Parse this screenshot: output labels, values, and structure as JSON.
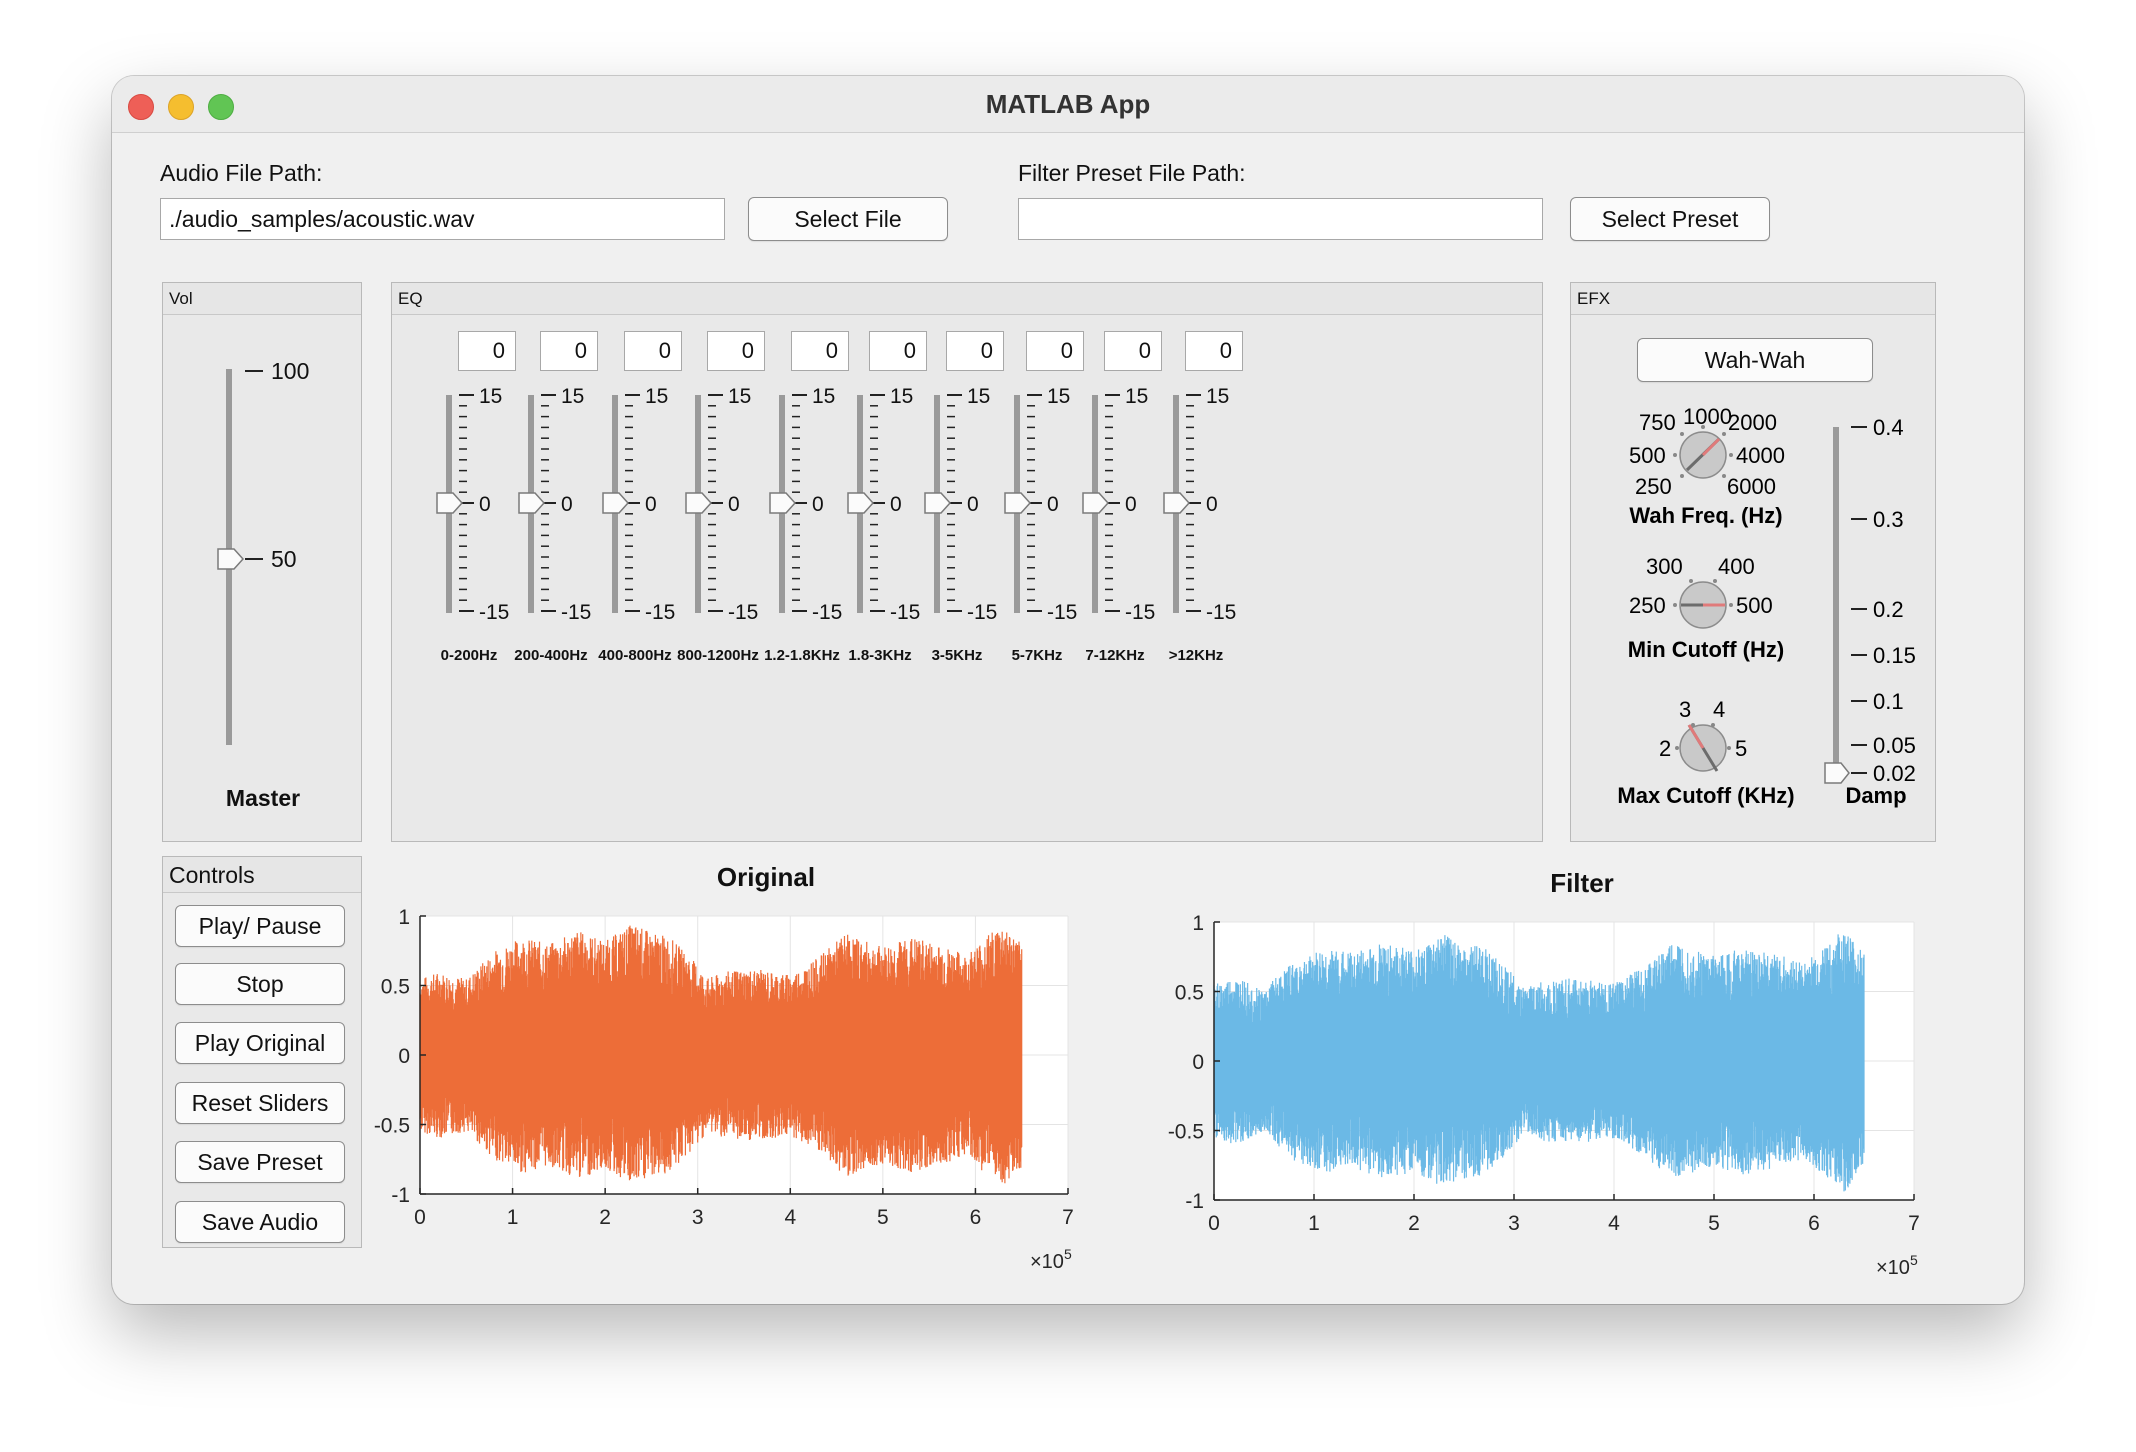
{
  "window": {
    "title": "MATLAB App"
  },
  "audio": {
    "label": "Audio File Path:",
    "value": "./audio_samples/acoustic.wav",
    "button": "Select File"
  },
  "preset": {
    "label": "Filter Preset File Path:",
    "value": "",
    "button": "Select Preset"
  },
  "vol": {
    "panel_title": "Vol",
    "caption": "Master",
    "ticks": [
      "100",
      "50"
    ],
    "value": 50,
    "min": 0,
    "max": 100
  },
  "eq": {
    "panel_title": "EQ",
    "tick_top": "15",
    "tick_mid": "0",
    "tick_bot": "-15",
    "min": -15,
    "max": 15,
    "bands": [
      {
        "label": "0-200Hz",
        "value": "0"
      },
      {
        "label": "200-400Hz",
        "value": "0"
      },
      {
        "label": "400-800Hz",
        "value": "0"
      },
      {
        "label": "800-1200Hz",
        "value": "0"
      },
      {
        "label": "1.2-1.8KHz",
        "value": "0"
      },
      {
        "label": "1.8-3KHz",
        "value": "0"
      },
      {
        "label": "3-5KHz",
        "value": "0"
      },
      {
        "label": "5-7KHz",
        "value": "0"
      },
      {
        "label": "7-12KHz",
        "value": "0"
      },
      {
        "label": ">12KHz",
        "value": "0"
      }
    ]
  },
  "efx": {
    "panel_title": "EFX",
    "button": "Wah-Wah",
    "wah": {
      "caption": "Wah Freq. (Hz)",
      "ticks": [
        "750",
        "1000",
        "2000",
        "500",
        "4000",
        "250",
        "6000"
      ]
    },
    "min_cutoff": {
      "caption": "Min Cutoff (Hz)",
      "ticks": [
        "300",
        "400",
        "250",
        "500"
      ]
    },
    "max_cutoff": {
      "caption": "Max Cutoff (KHz)",
      "ticks": [
        "3",
        "4",
        "2",
        "5"
      ]
    },
    "damp": {
      "caption": "Damp",
      "ticks": [
        "0.4",
        "0.3",
        "0.2",
        "0.15",
        "0.1",
        "0.05",
        "0.02"
      ],
      "value": 0.02
    }
  },
  "controls": {
    "panel_title": "Controls",
    "buttons": [
      "Play/ Pause",
      "Stop",
      "Play Original",
      "Reset Sliders",
      "Save Preset",
      "Save Audio"
    ]
  },
  "colors": {
    "original": "#ED6D38",
    "filter": "#6BB9E6"
  },
  "chart_data": [
    {
      "type": "area",
      "title": "Original",
      "x_range": [
        0,
        650000
      ],
      "xlim": [
        0,
        700000
      ],
      "ylim": [
        -1,
        1
      ],
      "xticks": [
        "0",
        "1",
        "2",
        "3",
        "4",
        "5",
        "6",
        "7"
      ],
      "yticks": [
        "1",
        "0.5",
        "0",
        "-0.5",
        "-1"
      ],
      "x_exponent": "×10",
      "x_exponent_power": "5",
      "envelope_x": [
        0,
        20000,
        50000,
        80000,
        110000,
        140000,
        170000,
        200000,
        230000,
        250000,
        270000,
        300000,
        310000,
        330000,
        360000,
        400000,
        430000,
        460000,
        480000,
        500000,
        530000,
        560000,
        590000,
        610000,
        630000,
        645000
      ],
      "envelope_amp": [
        0.55,
        0.6,
        0.55,
        0.75,
        0.85,
        0.8,
        0.9,
        0.82,
        0.95,
        0.88,
        0.85,
        0.65,
        0.55,
        0.6,
        0.62,
        0.58,
        0.7,
        0.88,
        0.82,
        0.78,
        0.85,
        0.8,
        0.72,
        0.85,
        0.95,
        0.82
      ],
      "grid": true
    },
    {
      "type": "area",
      "title": "Filter",
      "x_range": [
        0,
        650000
      ],
      "xlim": [
        0,
        700000
      ],
      "ylim": [
        -1,
        1
      ],
      "xticks": [
        "0",
        "1",
        "2",
        "3",
        "4",
        "5",
        "6",
        "7"
      ],
      "yticks": [
        "1",
        "0.5",
        "0",
        "-0.5",
        "-1"
      ],
      "x_exponent": "×10",
      "x_exponent_power": "5",
      "envelope_x": [
        0,
        20000,
        50000,
        80000,
        110000,
        140000,
        170000,
        200000,
        230000,
        250000,
        270000,
        300000,
        310000,
        330000,
        360000,
        400000,
        430000,
        460000,
        480000,
        500000,
        530000,
        560000,
        590000,
        610000,
        630000,
        645000
      ],
      "envelope_amp": [
        0.55,
        0.6,
        0.52,
        0.72,
        0.8,
        0.78,
        0.85,
        0.8,
        0.92,
        0.85,
        0.82,
        0.62,
        0.52,
        0.58,
        0.6,
        0.56,
        0.68,
        0.86,
        0.8,
        0.76,
        0.82,
        0.78,
        0.7,
        0.82,
        0.95,
        0.8
      ],
      "grid": true
    }
  ]
}
